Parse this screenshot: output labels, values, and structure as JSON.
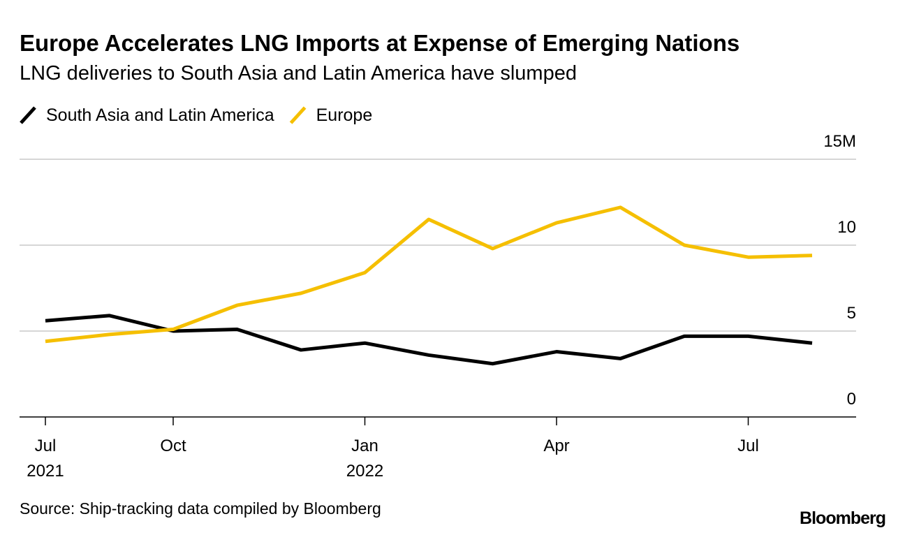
{
  "chart_data": {
    "type": "line",
    "title": "Europe Accelerates LNG Imports at Expense of Emerging Nations",
    "subtitle": "LNG deliveries to South Asia and Latin America have slumped",
    "source": "Source: Ship-tracking data compiled by Bloomberg",
    "brand": "Bloomberg",
    "categories": [
      [
        "Jul",
        "2021"
      ],
      null,
      [
        "Oct"
      ],
      null,
      null,
      [
        "Jan",
        "2022"
      ],
      null,
      null,
      [
        "Apr"
      ],
      null,
      null,
      [
        "Jul"
      ],
      null
    ],
    "series": [
      {
        "name": "South Asia and Latin America",
        "color": "#000000",
        "values": [
          5.6,
          5.9,
          5.0,
          5.1,
          3.9,
          4.3,
          3.6,
          3.1,
          3.8,
          3.4,
          4.7,
          4.7,
          4.3
        ]
      },
      {
        "name": "Europe",
        "color": "#f5bf00",
        "values": [
          4.4,
          4.8,
          5.1,
          6.5,
          7.2,
          8.4,
          11.5,
          9.8,
          11.3,
          12.2,
          10.0,
          9.3,
          9.4
        ]
      }
    ],
    "ylim": [
      0,
      15
    ],
    "yticks": [
      0,
      5,
      10,
      {
        "value": 15,
        "label": "15M"
      }
    ],
    "grid": true,
    "legend": "top-left"
  }
}
